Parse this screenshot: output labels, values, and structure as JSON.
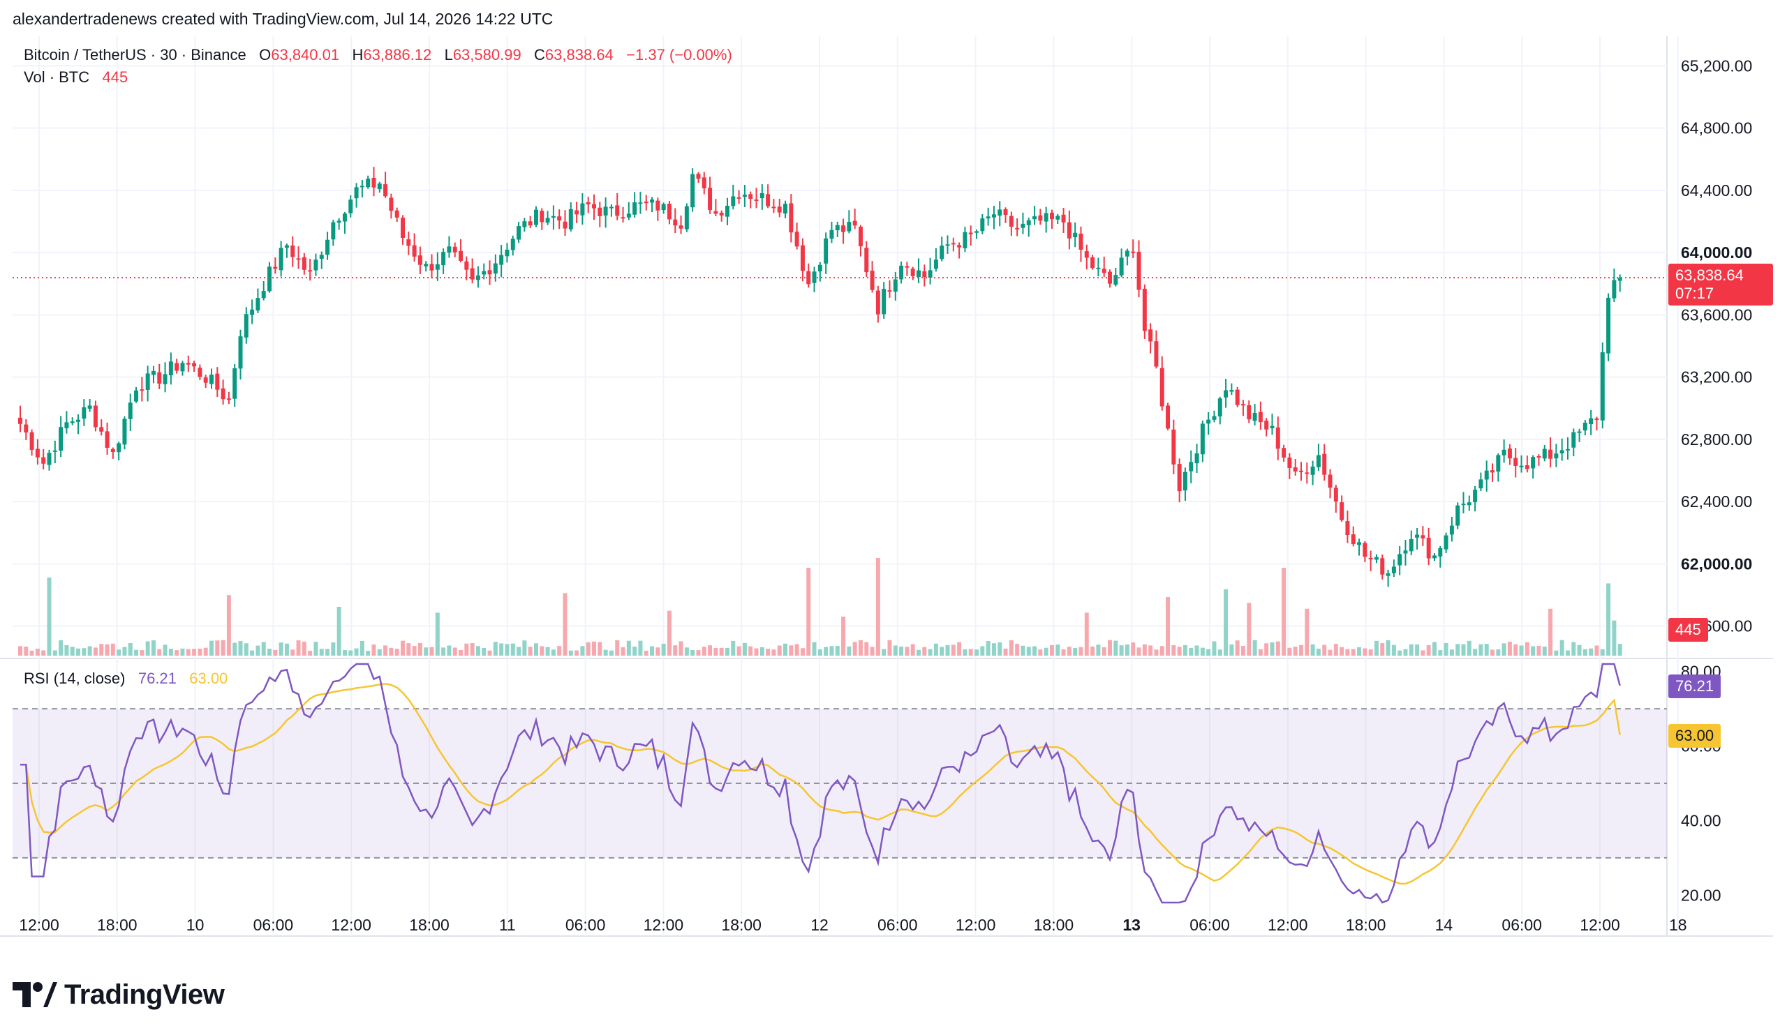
{
  "attribution": "alexandertradenews created with TradingView.com, Jul 14, 2026 14:22 UTC",
  "legend": {
    "symbol": "Bitcoin / TetherUS · 30 · Binance",
    "o_label": "O",
    "o_value": "63,840.01",
    "h_label": "H",
    "h_value": "63,886.12",
    "l_label": "L",
    "l_value": "63,580.99",
    "c_label": "C",
    "c_value": "63,838.64",
    "change": "−1.37 (−0.00%)",
    "vol_label": "Vol · BTC",
    "vol_value": "445",
    "rsi_label": "RSI (14, close)",
    "rsi_value": "76.21",
    "rsi_ma_value": "63.00"
  },
  "price_tag": {
    "price": "63,838.64",
    "countdown": "07:17",
    "volume": "445"
  },
  "brand": "TradingView",
  "colors": {
    "up": "#089981",
    "down": "#f23645",
    "up_vol": "#8fd3c9",
    "down_vol": "#f7a8ae",
    "rsi": "#7e57c2",
    "rsi_ma": "#f7c531",
    "band": "#7e57c2",
    "grid": "#f0f3fa",
    "axis_text": "#131722"
  },
  "chart_data": [
    {
      "type": "candlestick",
      "title": "",
      "y_axis_ticks": [
        "65,200.00",
        "64,800.00",
        "64,400.00",
        "64,000.00",
        "63,600.00",
        "63,200.00",
        "62,800.00",
        "62,400.00",
        "62,000.00",
        "61,600.00"
      ],
      "y_tick_values": [
        65200,
        64800,
        64400,
        64000,
        63600,
        63200,
        62800,
        62400,
        62000,
        61600
      ],
      "ylim": [
        61500,
        65300
      ],
      "x_axis_ticks": [
        "12:00",
        "18:00",
        "10",
        "06:00",
        "12:00",
        "18:00",
        "11",
        "06:00",
        "12:00",
        "18:00",
        "12",
        "06:00",
        "12:00",
        "18:00",
        "13",
        "06:00",
        "12:00",
        "18:00",
        "14",
        "06:00",
        "12:00",
        "18"
      ],
      "bold_x_ticks": [
        "13"
      ],
      "bold_y_ticks": [
        "64,000.00",
        "62,000.00"
      ],
      "last_price": 63838.64,
      "anchors": [
        [
          0,
          62900
        ],
        [
          4,
          62650
        ],
        [
          8,
          62900
        ],
        [
          12,
          63000
        ],
        [
          16,
          62700
        ],
        [
          20,
          63150
        ],
        [
          24,
          63200
        ],
        [
          28,
          63300
        ],
        [
          32,
          63200
        ],
        [
          36,
          63050
        ],
        [
          38,
          63500
        ],
        [
          42,
          63800
        ],
        [
          46,
          64050
        ],
        [
          50,
          63850
        ],
        [
          54,
          64200
        ],
        [
          58,
          64400
        ],
        [
          62,
          64450
        ],
        [
          66,
          64100
        ],
        [
          70,
          63900
        ],
        [
          74,
          64000
        ],
        [
          78,
          63800
        ],
        [
          82,
          63950
        ],
        [
          86,
          64150
        ],
        [
          90,
          64250
        ],
        [
          94,
          64200
        ],
        [
          98,
          64300
        ],
        [
          102,
          64250
        ],
        [
          106,
          64300
        ],
        [
          110,
          64300
        ],
        [
          114,
          64200
        ],
        [
          116,
          64500
        ],
        [
          120,
          64250
        ],
        [
          124,
          64400
        ],
        [
          128,
          64350
        ],
        [
          132,
          64300
        ],
        [
          136,
          63800
        ],
        [
          140,
          64150
        ],
        [
          144,
          64150
        ],
        [
          148,
          63650
        ],
        [
          152,
          63950
        ],
        [
          156,
          63850
        ],
        [
          160,
          64050
        ],
        [
          164,
          64100
        ],
        [
          168,
          64250
        ],
        [
          172,
          64150
        ],
        [
          176,
          64200
        ],
        [
          180,
          64200
        ],
        [
          184,
          63950
        ],
        [
          188,
          63800
        ],
        [
          192,
          64050
        ],
        [
          194,
          63500
        ],
        [
          196,
          63250
        ],
        [
          198,
          62850
        ],
        [
          200,
          62500
        ],
        [
          204,
          62850
        ],
        [
          208,
          63150
        ],
        [
          212,
          62950
        ],
        [
          216,
          62850
        ],
        [
          220,
          62550
        ],
        [
          224,
          62700
        ],
        [
          228,
          62300
        ],
        [
          232,
          62050
        ],
        [
          236,
          61950
        ],
        [
          240,
          62200
        ],
        [
          244,
          62050
        ],
        [
          248,
          62350
        ],
        [
          252,
          62500
        ],
        [
          256,
          62700
        ],
        [
          260,
          62650
        ],
        [
          264,
          62700
        ],
        [
          268,
          62800
        ],
        [
          272,
          62950
        ],
        [
          274,
          63750
        ],
        [
          276,
          63850
        ]
      ]
    },
    {
      "type": "bar",
      "title": "Vol · BTC",
      "last_value": 445,
      "spikes": [
        [
          5,
          4
        ],
        [
          36,
          3.1
        ],
        [
          55,
          2.5
        ],
        [
          72,
          2.2
        ],
        [
          94,
          3.2
        ],
        [
          112,
          2.3
        ],
        [
          136,
          4.5
        ],
        [
          142,
          2.0
        ],
        [
          148,
          5.2
        ],
        [
          184,
          2.2
        ],
        [
          198,
          3.0
        ],
        [
          208,
          3.4
        ],
        [
          212,
          2.7
        ],
        [
          218,
          4.5
        ],
        [
          222,
          2.4
        ],
        [
          264,
          2.4
        ],
        [
          274,
          3.7
        ],
        [
          275,
          1.8
        ]
      ]
    },
    {
      "type": "line",
      "title": "RSI (14, close)",
      "y_axis_ticks": [
        "80.00",
        "60.00",
        "40.00",
        "20.00"
      ],
      "y_tick_values": [
        80,
        60,
        40,
        20
      ],
      "ylim": [
        18,
        82
      ],
      "band": [
        30,
        70
      ],
      "midline": 50,
      "series": [
        {
          "name": "RSI",
          "last_value": 76.21
        },
        {
          "name": "RSI MA",
          "last_value": 63.0
        }
      ]
    }
  ]
}
